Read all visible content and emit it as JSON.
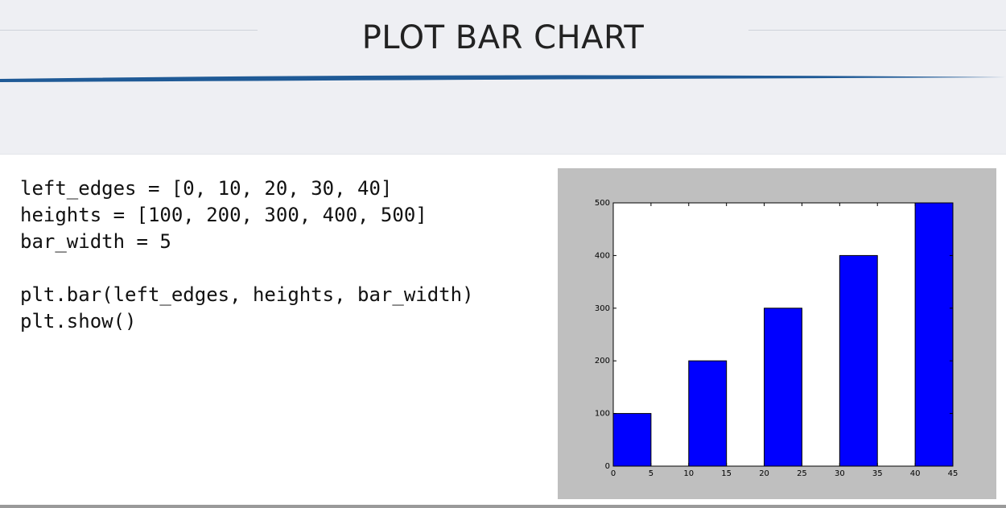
{
  "slide": {
    "title": "PLOT BAR CHART",
    "code_lines": [
      "left_edges = [0, 10, 20, 30, 40]",
      "heights = [100, 200, 300, 400, 500]",
      "bar_width = 5",
      "",
      "plt.bar(left_edges, heights, bar_width)",
      "plt.show()"
    ]
  },
  "colors": {
    "header_bg": "#eeeff3",
    "swoosh": "#1f5a96",
    "plot_frame": "#bfbfbf",
    "bar_fill": "#0000ff"
  },
  "chart_data": {
    "type": "bar",
    "left_edges": [
      0,
      10,
      20,
      30,
      40
    ],
    "bar_width": 5,
    "values": [
      100,
      200,
      300,
      400,
      500
    ],
    "xlim": [
      0,
      45
    ],
    "ylim": [
      0,
      500
    ],
    "x_ticks": [
      0,
      5,
      10,
      15,
      20,
      25,
      30,
      35,
      40,
      45
    ],
    "y_ticks": [
      0,
      100,
      200,
      300,
      400,
      500
    ],
    "title": "",
    "xlabel": "",
    "ylabel": "",
    "grid": false
  }
}
